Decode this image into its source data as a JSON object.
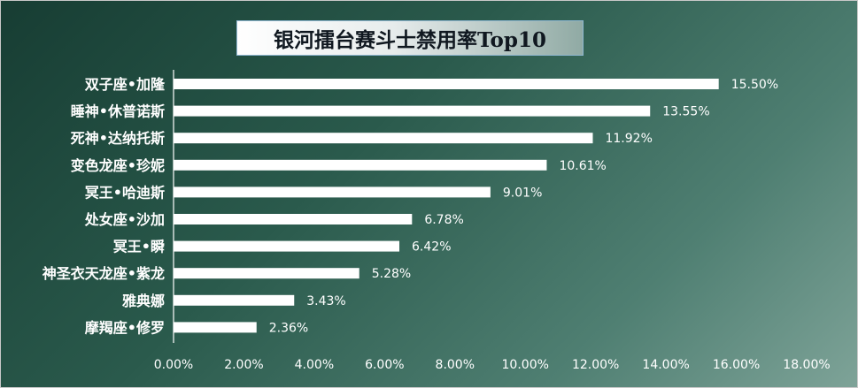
{
  "chart_data": {
    "type": "bar",
    "orientation": "horizontal",
    "title": "银河擂台赛斗士禁用率Top10",
    "categories": [
      "双子座•加隆",
      "睡神•休普诺斯",
      "死神•达纳托斯",
      "变色龙座•珍妮",
      "冥王•哈迪斯",
      "处女座•沙加",
      "冥王•瞬",
      "神圣衣天龙座•紫龙",
      "雅典娜",
      "摩羯座•修罗"
    ],
    "values": [
      15.5,
      13.55,
      11.92,
      10.61,
      9.01,
      6.78,
      6.42,
      5.28,
      3.43,
      2.36
    ],
    "value_labels": [
      "15.50%",
      "13.55%",
      "11.92%",
      "10.61%",
      "9.01%",
      "6.78%",
      "6.42%",
      "5.28%",
      "3.43%",
      "2.36%"
    ],
    "xlim": [
      0,
      18
    ],
    "x_ticks": [
      0,
      2,
      4,
      6,
      8,
      10,
      12,
      14,
      16,
      18
    ],
    "x_tick_labels": [
      "0.00%",
      "2.00%",
      "4.00%",
      "6.00%",
      "8.00%",
      "10.00%",
      "12.00%",
      "14.00%",
      "16.00%",
      "18.00%"
    ],
    "grid": false,
    "legend": "none",
    "bar_color": "#ffffff"
  }
}
